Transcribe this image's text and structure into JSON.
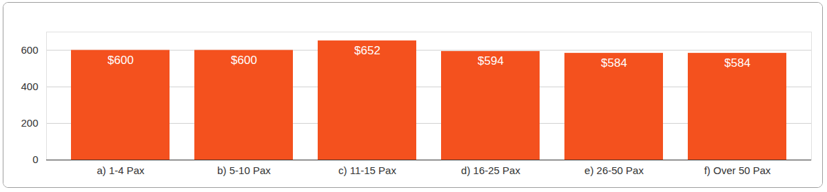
{
  "chart_data": {
    "type": "bar",
    "categories": [
      "a) 1-4 Pax",
      "b) 5-10 Pax",
      "c) 11-15 Pax",
      "d) 16-25 Pax",
      "e) 26-50 Pax",
      "f) Over 50 Pax"
    ],
    "values": [
      600,
      600,
      652,
      594,
      584,
      584
    ],
    "value_labels": [
      "$600",
      "$600",
      "$652",
      "$594",
      "$584",
      "$584"
    ],
    "color": "#f4511e",
    "ylim": [
      0,
      700
    ],
    "yticks": [
      0,
      200,
      400,
      600
    ],
    "grid": true,
    "data_labels": true
  }
}
